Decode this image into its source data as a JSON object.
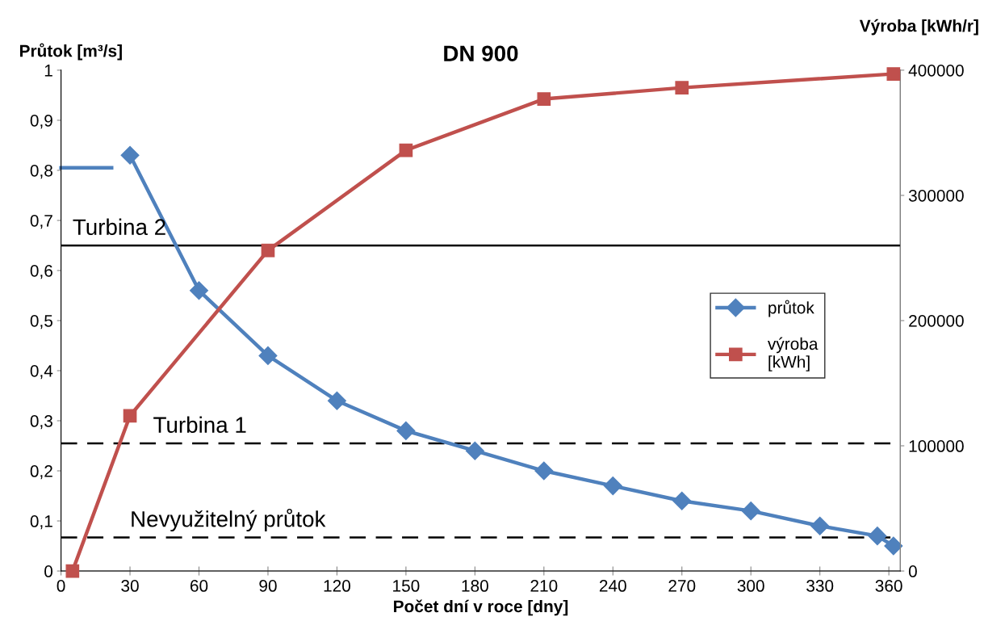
{
  "chart_data": {
    "type": "line",
    "title": "DN 900",
    "xlabel": "Počet dní v roce [dny]",
    "ylabel": "Průtok [m³/s]",
    "y2label": "Výroba [kWh/r]",
    "series": [
      {
        "name": "průtok",
        "color": "#4f81bd",
        "marker": "diamond",
        "x": [
          30,
          60,
          90,
          120,
          150,
          180,
          210,
          240,
          270,
          300,
          330,
          355,
          362
        ],
        "values": [
          0.83,
          0.56,
          0.43,
          0.34,
          0.28,
          0.24,
          0.2,
          0.17,
          0.14,
          0.12,
          0.09,
          0.07,
          0.05
        ]
      },
      {
        "name": "výroba [kWh]",
        "color": "#c0504d",
        "marker": "square",
        "axis": "y2",
        "x": [
          5,
          30,
          90,
          150,
          210,
          270,
          362
        ],
        "values": [
          0,
          124000,
          256000,
          336000,
          377000,
          386000,
          397000
        ]
      },
      {
        "color": "#4f81bd",
        "marker": "none",
        "x": [
          0,
          22
        ],
        "values": [
          0.805,
          0.805
        ]
      }
    ],
    "ref_lines": [
      {
        "axis": "y",
        "value": 0.65,
        "label": "Turbina 2",
        "color": "#000000",
        "line_style": "solid"
      },
      {
        "axis": "y",
        "value": 0.255,
        "label": "Turbina 1",
        "color": "#000000",
        "line_style": "dashed"
      },
      {
        "axis": "y",
        "value": 0.067,
        "label": "Nevyužitelný průtok",
        "color": "#000000",
        "line_style": "dashed"
      }
    ],
    "xlim": [
      0,
      365
    ],
    "xticks": [
      0,
      30,
      60,
      90,
      120,
      150,
      180,
      210,
      240,
      270,
      300,
      330,
      360
    ],
    "ylim": [
      0,
      1
    ],
    "yticks": [
      {
        "value": 0,
        "label": "0"
      },
      {
        "value": 0.1,
        "label": "0,1"
      },
      {
        "value": 0.2,
        "label": "0,2"
      },
      {
        "value": 0.3,
        "label": "0,3"
      },
      {
        "value": 0.4,
        "label": "0,4"
      },
      {
        "value": 0.5,
        "label": "0,5"
      },
      {
        "value": 0.6,
        "label": "0,6"
      },
      {
        "value": 0.7,
        "label": "0,7"
      },
      {
        "value": 0.8,
        "label": "0,8"
      },
      {
        "value": 0.9,
        "label": "0,9"
      },
      {
        "value": 1,
        "label": "1"
      }
    ],
    "y2lim": [
      0,
      400000
    ],
    "y2ticks": [
      0,
      100000,
      200000,
      300000,
      400000
    ],
    "grid": false,
    "legend": "right",
    "line_style": "solid"
  }
}
